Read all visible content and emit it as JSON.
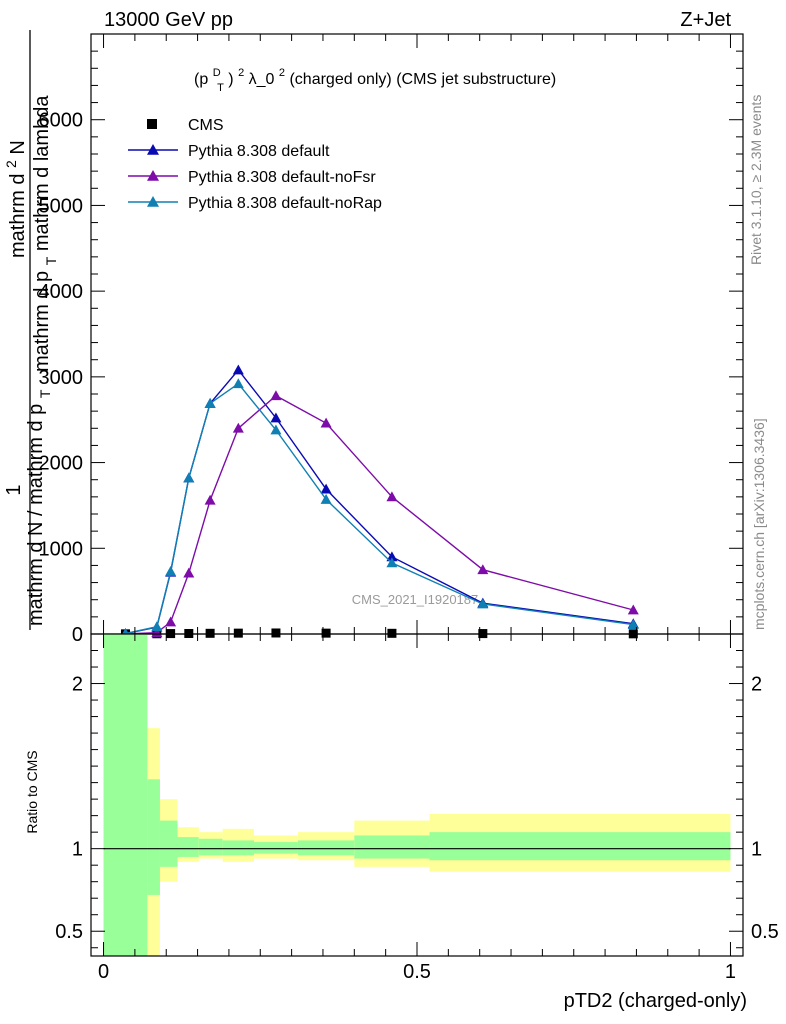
{
  "header": {
    "left": "13000 GeV pp",
    "right": "Z+Jet"
  },
  "plot_title": {
    "p": "(p",
    "sup_d": "D",
    "sub_t": "T",
    "close": ")",
    "sup_2": "2",
    "rest": " λ_0",
    "sup_2b": "2",
    "tail": " (charged only) (CMS jet substructure)"
  },
  "ylabel": {
    "one": "1",
    "denominator": "mathrm d N / mathrm d p",
    "denom_sub": "T",
    "main": "mathrm d",
    "main_sup": "2",
    "main_rest": "N",
    "lower": "mathrm d p",
    "lower_sub": "T",
    "lower_rest": " mathrm d lambda"
  },
  "side_labels": {
    "rivet": "Rivet 3.1.10, ≥ 2.3M events",
    "mcplots": "mcplots.cern.ch [arXiv:1306.3436]"
  },
  "watermark": "CMS_2021_I1920187",
  "ratio_ylabel": "Ratio to CMS",
  "xlabel": "pTD2 (charged-only)",
  "colors": {
    "cms": "#000000",
    "default": "#0a0ab4",
    "noFsr": "#7d0ca8",
    "noRap": "#1080b4",
    "band_inner": "#99ff99",
    "band_outer": "#ffff99"
  },
  "chart_data": {
    "type": "line",
    "xlim": [
      -0.02,
      1.02
    ],
    "ylim": [
      0,
      7000
    ],
    "ratio_ylim": [
      0.35,
      2.3
    ],
    "x_ticks": [
      {
        "v": 0,
        "label": "0"
      },
      {
        "v": 0.5,
        "label": "0.5"
      },
      {
        "v": 1,
        "label": "1"
      }
    ],
    "y_ticks": [
      {
        "v": 0,
        "label": "0"
      },
      {
        "v": 1000,
        "label": "1000"
      },
      {
        "v": 2000,
        "label": "2000"
      },
      {
        "v": 3000,
        "label": "3000"
      },
      {
        "v": 4000,
        "label": "4000"
      },
      {
        "v": 5000,
        "label": "5000"
      },
      {
        "v": 6000,
        "label": "6000"
      }
    ],
    "ratio_ticks": [
      {
        "v": 0.5,
        "label": "0.5"
      },
      {
        "v": 1,
        "label": "1"
      },
      {
        "v": 2,
        "label": "2"
      }
    ],
    "legend_position": "top-left",
    "series": [
      {
        "name": "CMS",
        "key": "cms",
        "marker": "square",
        "x": [
          0.035,
          0.085,
          0.107,
          0.136,
          0.17,
          0.215,
          0.275,
          0.355,
          0.46,
          0.605,
          0.845
        ],
        "y": [
          2,
          3,
          5,
          6,
          8,
          10,
          12,
          10,
          8,
          5,
          2
        ]
      },
      {
        "name": "Pythia 8.308 default",
        "key": "default",
        "marker": "triangle",
        "x": [
          0.035,
          0.085,
          0.107,
          0.136,
          0.17,
          0.215,
          0.275,
          0.355,
          0.46,
          0.605,
          0.845
        ],
        "y": [
          5,
          80,
          720,
          1820,
          2690,
          3080,
          2520,
          1690,
          900,
          360,
          120
        ]
      },
      {
        "name": "Pythia 8.308 default-noFsr",
        "key": "noFsr",
        "marker": "triangle",
        "x": [
          0.035,
          0.085,
          0.107,
          0.136,
          0.17,
          0.215,
          0.275,
          0.355,
          0.46,
          0.605,
          0.845
        ],
        "y": [
          2,
          15,
          140,
          710,
          1560,
          2400,
          2780,
          2460,
          1600,
          750,
          280
        ]
      },
      {
        "name": "Pythia 8.308 default-noRap",
        "key": "noRap",
        "marker": "triangle",
        "x": [
          0.035,
          0.085,
          0.107,
          0.136,
          0.17,
          0.215,
          0.275,
          0.355,
          0.46,
          0.605,
          0.845
        ],
        "y": [
          5,
          85,
          730,
          1820,
          2690,
          2920,
          2380,
          1570,
          830,
          350,
          110
        ]
      }
    ],
    "ratio_band": [
      {
        "x0": 0.0,
        "x1": 0.07,
        "in_lo": 0.35,
        "in_hi": 2.3,
        "out_lo": 0.35,
        "out_hi": 2.3
      },
      {
        "x0": 0.07,
        "x1": 0.09,
        "in_lo": 0.72,
        "in_hi": 1.42,
        "out_lo": 0.35,
        "out_hi": 1.73
      },
      {
        "x0": 0.09,
        "x1": 0.118,
        "in_lo": 0.89,
        "in_hi": 1.17,
        "out_lo": 0.8,
        "out_hi": 1.3
      },
      {
        "x0": 0.118,
        "x1": 0.152,
        "in_lo": 0.95,
        "in_hi": 1.07,
        "out_lo": 0.92,
        "out_hi": 1.13
      },
      {
        "x0": 0.152,
        "x1": 0.19,
        "in_lo": 0.96,
        "in_hi": 1.06,
        "out_lo": 0.94,
        "out_hi": 1.1
      },
      {
        "x0": 0.19,
        "x1": 0.24,
        "in_lo": 0.96,
        "in_hi": 1.05,
        "out_lo": 0.92,
        "out_hi": 1.12
      },
      {
        "x0": 0.24,
        "x1": 0.31,
        "in_lo": 0.97,
        "in_hi": 1.04,
        "out_lo": 0.94,
        "out_hi": 1.08
      },
      {
        "x0": 0.31,
        "x1": 0.4,
        "in_lo": 0.96,
        "in_hi": 1.05,
        "out_lo": 0.93,
        "out_hi": 1.1
      },
      {
        "x0": 0.4,
        "x1": 0.52,
        "in_lo": 0.94,
        "in_hi": 1.08,
        "out_lo": 0.89,
        "out_hi": 1.17
      },
      {
        "x0": 0.52,
        "x1": 1.0,
        "in_lo": 0.93,
        "in_hi": 1.1,
        "out_lo": 0.86,
        "out_hi": 1.21
      }
    ]
  }
}
